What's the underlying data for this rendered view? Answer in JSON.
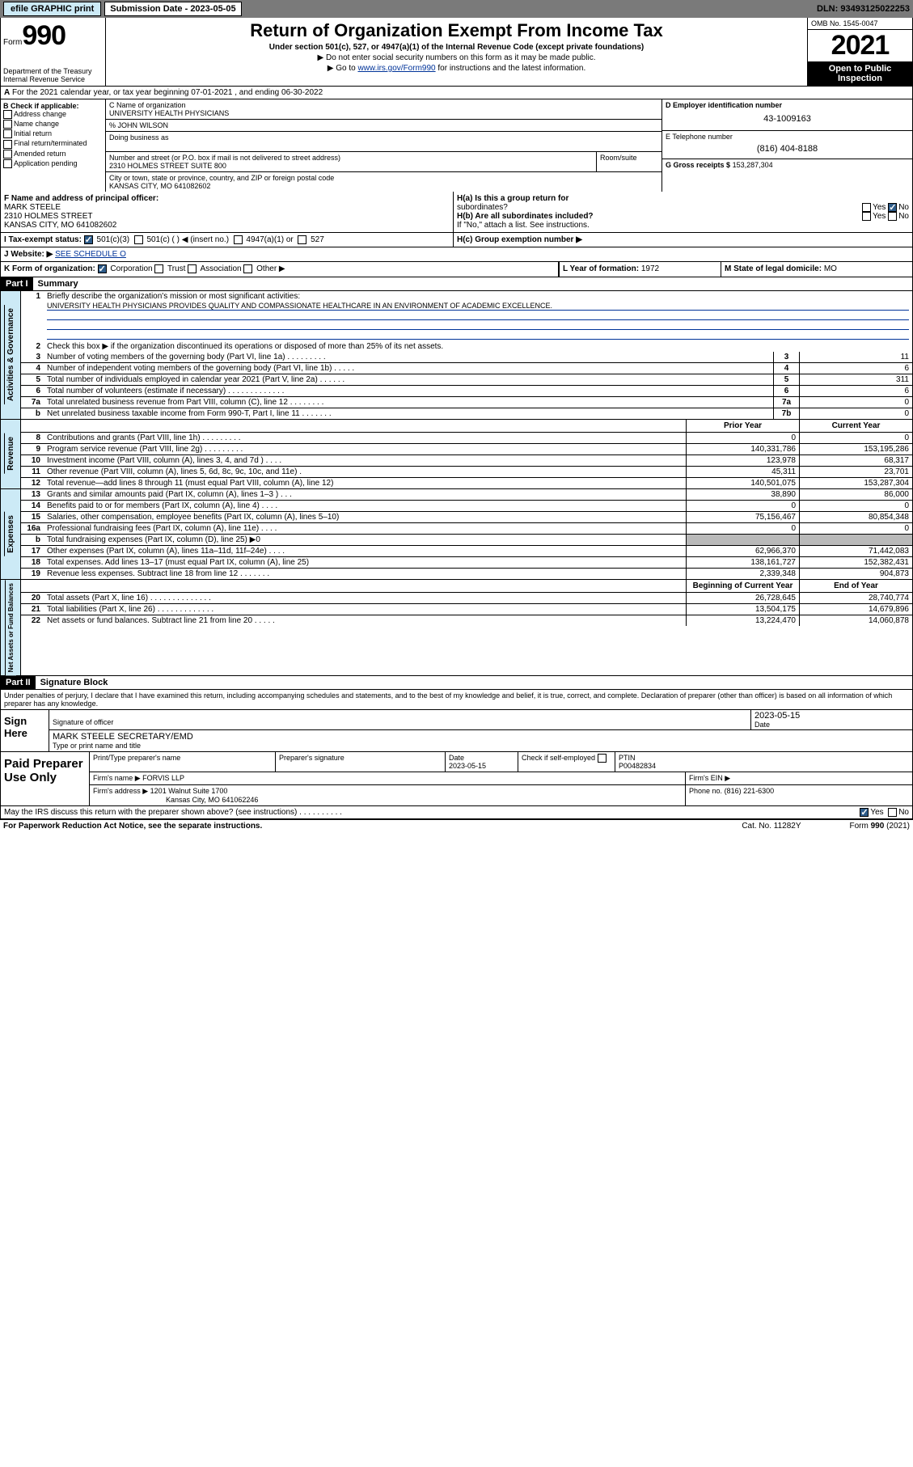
{
  "toolbar": {
    "efile": "efile GRAPHIC print",
    "submission_label": "Submission Date - 2023-05-05",
    "dln": "DLN: 93493125022253"
  },
  "header": {
    "form_label": "Form",
    "form_number": "990",
    "dept": "Department of the Treasury\nInternal Revenue Service",
    "title": "Return of Organization Exempt From Income Tax",
    "subtitle": "Under section 501(c), 527, or 4947(a)(1) of the Internal Revenue Code (except private foundations)",
    "note1": "▶ Do not enter social security numbers on this form as it may be made public.",
    "note2_pre": "▶ Go to ",
    "note2_link": "www.irs.gov/Form990",
    "note2_post": " for instructions and the latest information.",
    "omb": "OMB No. 1545-0047",
    "year": "2021",
    "open_pub": "Open to Public Inspection"
  },
  "row_a": "For the 2021 calendar year, or tax year beginning 07-01-2021   , and ending 06-30-2022",
  "col_b": {
    "label": "B Check if applicable:",
    "items": [
      "Address change",
      "Name change",
      "Initial return",
      "Final return/terminated",
      "Amended return",
      "Application pending"
    ]
  },
  "name_block": {
    "c_label": "C Name of organization",
    "org_name": "UNIVERSITY HEALTH PHYSICIANS",
    "pct_label": "% JOHN WILSON",
    "dba_label": "Doing business as",
    "street_label": "Number and street (or P.O. box if mail is not delivered to street address)",
    "room_label": "Room/suite",
    "street": "2310 HOLMES STREET SUITE 800",
    "city_label": "City or town, state or province, country, and ZIP or foreign postal code",
    "city": "KANSAS CITY, MO  641082602"
  },
  "col_d": {
    "ein_label": "D Employer identification number",
    "ein": "43-1009163",
    "phone_label": "E Telephone number",
    "phone": "(816) 404-8188",
    "gross_label": "G Gross receipts $",
    "gross": "153,287,304"
  },
  "row_f": {
    "label": "F  Name and address of principal officer:",
    "name": "MARK STEELE",
    "addr1": "2310 HOLMES STREET",
    "addr2": "KANSAS CITY, MO  641082602"
  },
  "row_h": {
    "ha_label": "H(a)  Is this a group return for",
    "ha_sub": "subordinates?",
    "hb_label": "H(b)  Are all subordinates included?",
    "hb_note": "If \"No,\" attach a list. See instructions.",
    "hc_label": "H(c)  Group exemption number ▶"
  },
  "row_i": {
    "label": "I   Tax-exempt status:",
    "opts": [
      "501(c)(3)",
      "501(c) (  ) ◀ (insert no.)",
      "4947(a)(1) or",
      "527"
    ]
  },
  "row_j": {
    "label": "J   Website: ▶",
    "val": "SEE SCHEDULE O"
  },
  "row_k": {
    "label": "K Form of organization:",
    "opts": [
      "Corporation",
      "Trust",
      "Association",
      "Other ▶"
    ],
    "l_label": "L Year of formation:",
    "l_val": "1972",
    "m_label": "M State of legal domicile:",
    "m_val": "MO"
  },
  "part1": {
    "header": "Part I",
    "title": "Summary"
  },
  "summary": {
    "l1": "Briefly describe the organization's mission or most significant activities:",
    "l1_val": "UNIVERSITY HEALTH PHYSICIANS PROVIDES QUALITY AND COMPASSIONATE HEALTHCARE IN AN ENVIRONMENT OF ACADEMIC EXCELLENCE.",
    "l2": "Check this box ▶    if the organization discontinued its operations or disposed of more than 25% of its net assets.",
    "l3": "Number of voting members of the governing body (Part VI, line 1a)   .    .    .    .    .    .    .    .    .",
    "l3v": "11",
    "l4": "Number of independent voting members of the governing body (Part VI, line 1b)   .    .    .    .    .",
    "l4v": "6",
    "l5": "Total number of individuals employed in calendar year 2021 (Part V, line 2a)   .    .    .    .    .    .",
    "l5v": "311",
    "l6": "Total number of volunteers (estimate if necessary)   .    .    .    .    .    .    .    .    .    .    .    .    .",
    "l6v": "6",
    "l7a": "Total unrelated business revenue from Part VIII, column (C), line 12   .    .    .    .    .    .    .    .",
    "l7av": "0",
    "l7b": "Net unrelated business taxable income from Form 990-T, Part I, line 11   .    .    .    .    .    .    .",
    "l7bv": "0"
  },
  "rev_exp_header": {
    "prior": "Prior Year",
    "current": "Current Year"
  },
  "revenue": {
    "side": "Revenue",
    "rows": [
      {
        "n": "8",
        "d": "Contributions and grants (Part VIII, line 1h)   .    .    .    .    .    .    .    .    .",
        "p": "0",
        "c": "0"
      },
      {
        "n": "9",
        "d": "Program service revenue (Part VIII, line 2g)   .    .    .    .    .    .    .    .    .",
        "p": "140,331,786",
        "c": "153,195,286"
      },
      {
        "n": "10",
        "d": "Investment income (Part VIII, column (A), lines 3, 4, and 7d )   .    .    .    .",
        "p": "123,978",
        "c": "68,317"
      },
      {
        "n": "11",
        "d": "Other revenue (Part VIII, column (A), lines 5, 6d, 8c, 9c, 10c, and 11e)   .",
        "p": "45,311",
        "c": "23,701"
      },
      {
        "n": "12",
        "d": "Total revenue—add lines 8 through 11 (must equal Part VIII, column (A), line 12)",
        "p": "140,501,075",
        "c": "153,287,304"
      }
    ]
  },
  "expenses": {
    "side": "Expenses",
    "rows": [
      {
        "n": "13",
        "d": "Grants and similar amounts paid (Part IX, column (A), lines 1–3 )   .    .    .",
        "p": "38,890",
        "c": "86,000"
      },
      {
        "n": "14",
        "d": "Benefits paid to or for members (Part IX, column (A), line 4)   .    .    .    .",
        "p": "0",
        "c": "0"
      },
      {
        "n": "15",
        "d": "Salaries, other compensation, employee benefits (Part IX, column (A), lines 5–10)",
        "p": "75,156,467",
        "c": "80,854,348"
      },
      {
        "n": "16a",
        "d": "Professional fundraising fees (Part IX, column (A), line 11e)   .    .    .    .",
        "p": "0",
        "c": "0"
      },
      {
        "n": "b",
        "d": "Total fundraising expenses (Part IX, column (D), line 25) ▶0",
        "p": "",
        "c": "",
        "shaded": true
      },
      {
        "n": "17",
        "d": "Other expenses (Part IX, column (A), lines 11a–11d, 11f–24e)   .    .    .    .",
        "p": "62,966,370",
        "c": "71,442,083"
      },
      {
        "n": "18",
        "d": "Total expenses. Add lines 13–17 (must equal Part IX, column (A), line 25)",
        "p": "138,161,727",
        "c": "152,382,431"
      },
      {
        "n": "19",
        "d": "Revenue less expenses. Subtract line 18 from line 12   .    .    .    .    .    .    .",
        "p": "2,339,348",
        "c": "904,873"
      }
    ]
  },
  "netassets_header": {
    "beg": "Beginning of Current Year",
    "end": "End of Year"
  },
  "netassets": {
    "side": "Net Assets or Fund Balances",
    "rows": [
      {
        "n": "20",
        "d": "Total assets (Part X, line 16)   .    .    .    .    .    .    .    .    .    .    .    .    .    .",
        "p": "26,728,645",
        "c": "28,740,774"
      },
      {
        "n": "21",
        "d": "Total liabilities (Part X, line 26)   .    .    .    .    .    .    .    .    .    .    .    .    .",
        "p": "13,504,175",
        "c": "14,679,896"
      },
      {
        "n": "22",
        "d": "Net assets or fund balances. Subtract line 21 from line 20   .    .    .    .    .",
        "p": "13,224,470",
        "c": "14,060,878"
      }
    ]
  },
  "part2": {
    "header": "Part II",
    "title": "Signature Block"
  },
  "sig_intro": "Under penalties of perjury, I declare that I have examined this return, including accompanying schedules and statements, and to the best of my knowledge and belief, it is true, correct, and complete. Declaration of preparer (other than officer) is based on all information of which preparer has any knowledge.",
  "sign": {
    "label": "Sign Here",
    "sig_officer": "Signature of officer",
    "date": "2023-05-15",
    "date_label": "Date",
    "name": "MARK STEELE  SECRETARY/EMD",
    "name_label": "Type or print name and title"
  },
  "paid": {
    "label": "Paid Preparer Use Only",
    "h1": "Print/Type preparer's name",
    "h2": "Preparer's signature",
    "h3": "Date",
    "date": "2023-05-15",
    "h4": "Check     if self-employed",
    "ptin_label": "PTIN",
    "ptin": "P00482834",
    "firm_label": "Firm's name     ▶",
    "firm": "FORVIS LLP",
    "ein_label": "Firm's EIN ▶",
    "addr_label": "Firm's address ▶",
    "addr1": "1201 Walnut Suite 1700",
    "addr2": "Kansas City, MO  641062246",
    "phone_label": "Phone no.",
    "phone": "(816) 221-6300"
  },
  "footer": {
    "q": "May the IRS discuss this return with the preparer shown above? (see instructions)   .    .    .    .    .    .    .    .    .    .",
    "paperwork": "For Paperwork Reduction Act Notice, see the separate instructions.",
    "cat": "Cat. No. 11282Y",
    "form": "Form 990 (2021)"
  }
}
